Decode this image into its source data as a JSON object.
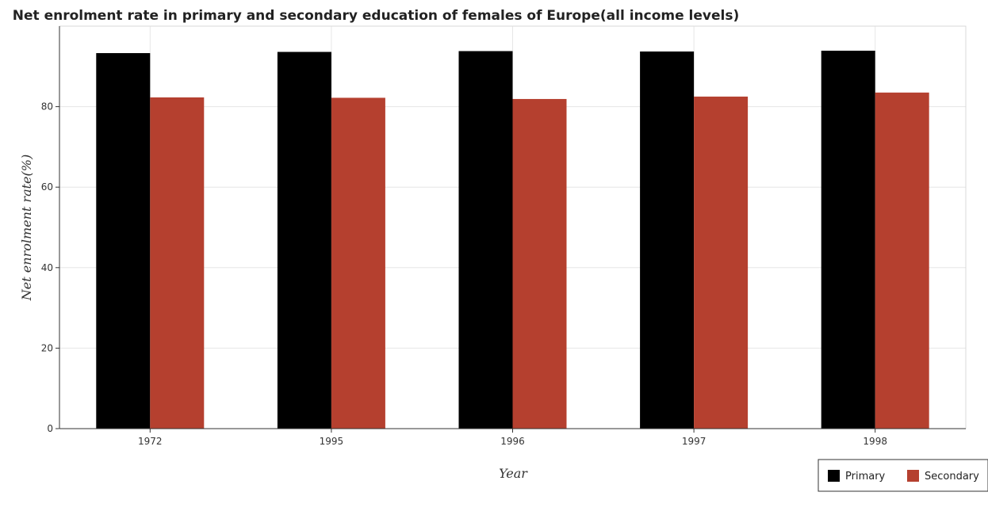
{
  "chart_data": {
    "type": "bar",
    "title": "Net enrolment rate in primary and secondary education of females of Europe(all income levels)",
    "xlabel": "Year",
    "ylabel": "Net enrolment rate(%)",
    "categories": [
      "1972",
      "1995",
      "1996",
      "1997",
      "1998"
    ],
    "ylim": [
      0,
      100
    ],
    "yticks": [
      0,
      20,
      40,
      60,
      80
    ],
    "grid": true,
    "legend_position": "bottom-right",
    "series": [
      {
        "name": "Primary",
        "color": "#000000",
        "values": [
          93.3,
          93.6,
          93.8,
          93.7,
          93.9
        ]
      },
      {
        "name": "Secondary",
        "color": "#b5402f",
        "values": [
          82.3,
          82.2,
          81.9,
          82.5,
          83.5
        ]
      }
    ]
  }
}
